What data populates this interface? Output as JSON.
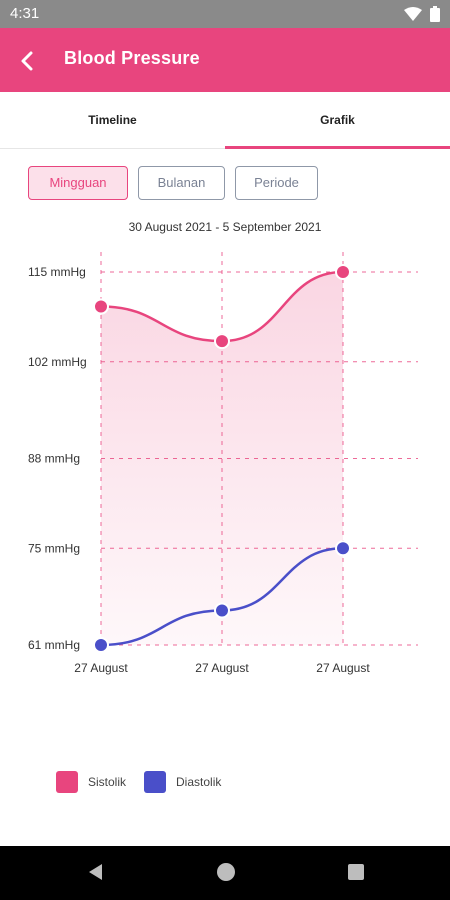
{
  "status_bar": {
    "time": "4:31"
  },
  "app_bar": {
    "title": "Blood Pressure"
  },
  "tabs": [
    {
      "label": "Timeline",
      "active": false
    },
    {
      "label": "Grafik",
      "active": true
    }
  ],
  "period_filter": {
    "options": [
      "Mingguan",
      "Bulanan",
      "Periode"
    ],
    "selected": "Mingguan"
  },
  "date_range": "30 August 2021 - 5 September 2021",
  "colors": {
    "accent": "#e8457e",
    "sistolik": "#e8457e",
    "diastolik": "#4a4fc9"
  },
  "chart_data": {
    "type": "line",
    "categories": [
      "27 August",
      "27 August",
      "27 August"
    ],
    "y_tick_labels": [
      "115 mmHg",
      "102 mmHg",
      "88 mmHg",
      "75 mmHg",
      "61 mmHg"
    ],
    "y_ticks": [
      115,
      102,
      88,
      75,
      61
    ],
    "ylim": [
      61,
      115
    ],
    "grid": true,
    "series": [
      {
        "name": "Sistolik",
        "values": [
          110,
          105,
          115
        ],
        "color": "#e8457e",
        "filled": true
      },
      {
        "name": "Diastolik",
        "values": [
          61,
          66,
          75
        ],
        "color": "#4a4fc9",
        "filled": false
      }
    ],
    "legend_position": "bottom-left"
  }
}
